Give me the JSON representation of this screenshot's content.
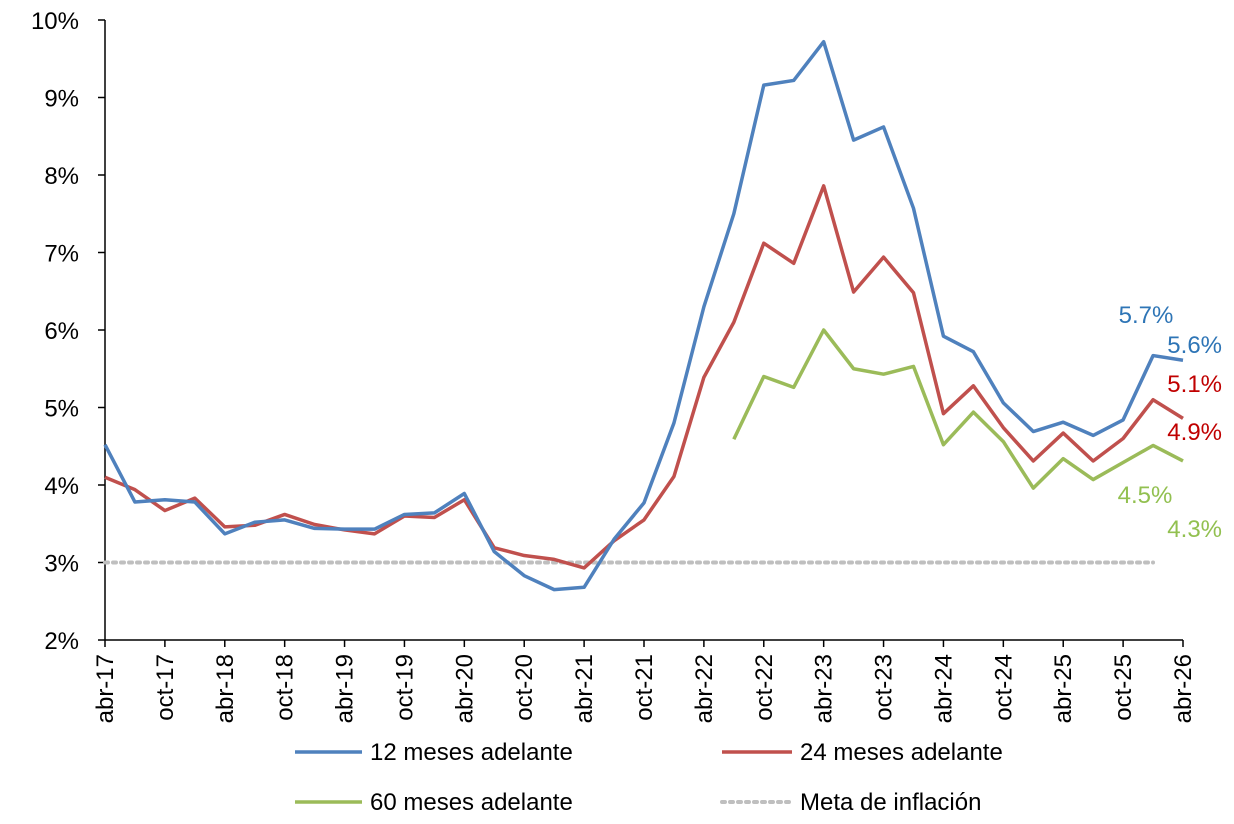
{
  "chart_data": {
    "type": "line",
    "title": "",
    "xlabel": "",
    "ylabel": "",
    "ylim": [
      0.02,
      0.1
    ],
    "yticks": [
      {
        "value": 0.02,
        "label": "2%"
      },
      {
        "value": 0.03,
        "label": "3%"
      },
      {
        "value": 0.04,
        "label": "4%"
      },
      {
        "value": 0.05,
        "label": "5%"
      },
      {
        "value": 0.06,
        "label": "6%"
      },
      {
        "value": 0.07,
        "label": "7%"
      },
      {
        "value": 0.08,
        "label": "8%"
      },
      {
        "value": 0.09,
        "label": "9%"
      },
      {
        "value": 0.1,
        "label": "10%"
      }
    ],
    "x": [
      "abr-17",
      "jul-17",
      "oct-17",
      "ene-18",
      "abr-18",
      "jul-18",
      "oct-18",
      "ene-19",
      "abr-19",
      "jul-19",
      "oct-19",
      "ene-20",
      "abr-20",
      "jul-20",
      "oct-20",
      "ene-21",
      "abr-21",
      "jul-21",
      "oct-21",
      "ene-22",
      "abr-22",
      "jul-22",
      "oct-22",
      "ene-23",
      "abr-23",
      "jul-23",
      "oct-23",
      "ene-24",
      "abr-24",
      "jul-24",
      "oct-24",
      "ene-25",
      "abr-25",
      "jul-25",
      "oct-25",
      "ene-26",
      "abr-26"
    ],
    "xticks": [
      "abr-17",
      "oct-17",
      "abr-18",
      "oct-18",
      "abr-19",
      "oct-19",
      "abr-20",
      "oct-20",
      "abr-21",
      "oct-21",
      "abr-22",
      "oct-22",
      "abr-23",
      "oct-23",
      "abr-24",
      "oct-24",
      "abr-25",
      "oct-25",
      "abr-26"
    ],
    "series": [
      {
        "name": "12 meses adelante",
        "color": "#4f81bd",
        "values": [
          0.0452,
          0.0378,
          0.0381,
          0.0378,
          0.0337,
          0.0352,
          0.0355,
          0.0344,
          0.0343,
          0.0343,
          0.0362,
          0.0364,
          0.0389,
          0.0314,
          0.0283,
          0.0265,
          0.0268,
          0.033,
          0.0377,
          0.048,
          0.063,
          0.075,
          0.0916,
          0.0922,
          0.0972,
          0.0845,
          0.0862,
          0.0757,
          0.0592,
          0.0572,
          0.0506,
          0.0469,
          0.0481,
          0.0464,
          0.0484,
          0.0567,
          0.0561
        ]
      },
      {
        "name": "24 meses adelante",
        "color": "#c0504d",
        "values": [
          0.041,
          0.0394,
          0.0367,
          0.0383,
          0.0346,
          0.0348,
          0.0362,
          0.0349,
          0.0342,
          0.0337,
          0.036,
          0.0358,
          0.0381,
          0.0319,
          0.0309,
          0.0304,
          0.0293,
          0.0328,
          0.0355,
          0.0411,
          0.0539,
          0.061,
          0.0712,
          0.0686,
          0.0786,
          0.0649,
          0.0694,
          0.0648,
          0.0492,
          0.0528,
          0.0474,
          0.0431,
          0.0467,
          0.0431,
          0.046,
          0.051,
          0.0486
        ]
      },
      {
        "name": "60 meses adelante",
        "color": "#9bbb59",
        "values": [
          null,
          null,
          null,
          null,
          null,
          null,
          null,
          null,
          null,
          null,
          null,
          null,
          null,
          null,
          null,
          null,
          null,
          null,
          null,
          null,
          null,
          0.0459,
          0.054,
          0.0526,
          0.06,
          0.055,
          0.0543,
          0.0553,
          0.0452,
          0.0494,
          0.0456,
          0.0396,
          0.0434,
          0.0407,
          0.0429,
          0.0451,
          0.0431
        ]
      },
      {
        "name": "Meta de inflación",
        "color": "#bfbfbf",
        "dashed": true,
        "values": [
          0.03,
          0.03,
          0.03,
          0.03,
          0.03,
          0.03,
          0.03,
          0.03,
          0.03,
          0.03,
          0.03,
          0.03,
          0.03,
          0.03,
          0.03,
          0.03,
          0.03,
          0.03,
          0.03,
          0.03,
          0.03,
          0.03,
          0.03,
          0.03,
          0.03,
          0.03,
          0.03,
          0.03,
          0.03,
          0.03,
          0.03,
          0.03,
          0.03,
          0.03,
          0.03,
          0.03,
          null
        ]
      }
    ],
    "annotations": [
      {
        "text": "5.7%",
        "color": "#2e75b6"
      },
      {
        "text": "5.6%",
        "color": "#2e75b6"
      },
      {
        "text": "5.1%",
        "color": "#c00000"
      },
      {
        "text": "4.9%",
        "color": "#c00000"
      },
      {
        "text": "4.5%",
        "color": "#92c050"
      },
      {
        "text": "4.3%",
        "color": "#92c050"
      }
    ],
    "legend": {
      "placement": "bottom",
      "entries": [
        "12 meses adelante",
        "24 meses adelante",
        "60 meses adelante",
        "Meta de inflación"
      ]
    },
    "grid": false
  }
}
